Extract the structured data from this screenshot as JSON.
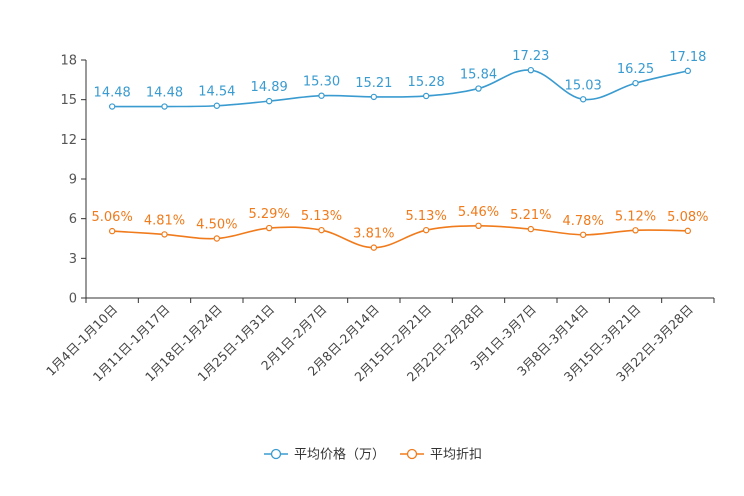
{
  "chart_data": {
    "type": "line",
    "title": "",
    "xlabel": "",
    "ylabel": "",
    "ylim": [
      0,
      18
    ],
    "yticks": [
      0,
      3,
      6,
      9,
      12,
      15,
      18
    ],
    "grid": false,
    "legend_position": "bottom-center",
    "categories": [
      "1月4日-1月10日",
      "1月11日-1月17日",
      "1月18日-1月24日",
      "1月25日-1月31日",
      "2月1日-2月7日",
      "2月8日-2月14日",
      "2月15日-2月21日",
      "2月22日-2月28日",
      "3月1日-3月7日",
      "3月8日-3月14日",
      "3月15日-3月21日",
      "3月22日-3月28日"
    ],
    "series": [
      {
        "name": "平均价格（万）",
        "color": "#3a9bd0",
        "values": [
          14.48,
          14.48,
          14.54,
          14.89,
          15.3,
          15.21,
          15.28,
          15.84,
          17.23,
          15.03,
          16.25,
          17.18
        ],
        "labels": [
          "14.48",
          "14.48",
          "14.54",
          "14.89",
          "15.30",
          "15.21",
          "15.28",
          "15.84",
          "17.23",
          "15.03",
          "16.25",
          "17.18"
        ]
      },
      {
        "name": "平均折扣",
        "color": "#f07b1c",
        "values": [
          5.06,
          4.81,
          4.5,
          5.29,
          5.13,
          3.81,
          5.13,
          5.46,
          5.21,
          4.78,
          5.12,
          5.08
        ],
        "labels": [
          "5.06%",
          "4.81%",
          "4.50%",
          "5.29%",
          "5.13%",
          "3.81%",
          "5.13%",
          "5.46%",
          "5.21%",
          "4.78%",
          "5.12%",
          "5.08%"
        ]
      }
    ]
  }
}
